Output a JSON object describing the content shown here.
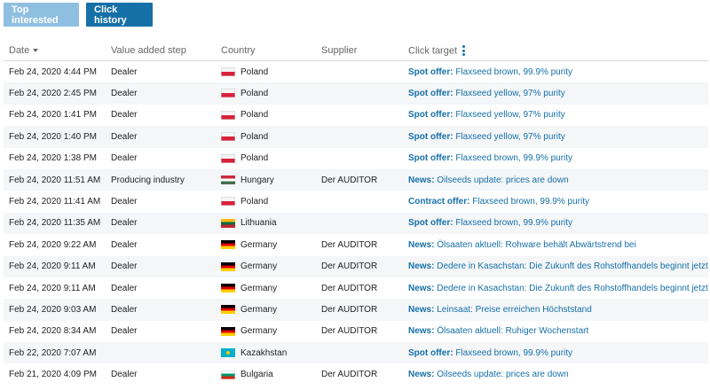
{
  "tabs": {
    "top_interested": "Top interested",
    "click_history": "Click history"
  },
  "columns": {
    "date": "Date",
    "value_added_step": "Value added step",
    "country": "Country",
    "supplier": "Supplier",
    "click_target": "Click target"
  },
  "colors": {
    "accent": "#1670a8",
    "tab_inactive": "#8fbfe0",
    "row_stripe": "#f4f6f8"
  },
  "rows": [
    {
      "date": "Feb 24, 2020 4:44 PM",
      "step": "Dealer",
      "flag": "poland",
      "country": "Poland",
      "supplier": "",
      "target_type": "Spot offer:",
      "target_text": "Flaxseed brown, 99.9% purity"
    },
    {
      "date": "Feb 24, 2020 2:45 PM",
      "step": "Dealer",
      "flag": "poland",
      "country": "Poland",
      "supplier": "",
      "target_type": "Spot offer:",
      "target_text": "Flaxseed yellow, 97% purity"
    },
    {
      "date": "Feb 24, 2020 1:41 PM",
      "step": "Dealer",
      "flag": "poland",
      "country": "Poland",
      "supplier": "",
      "target_type": "Spot offer:",
      "target_text": "Flaxseed yellow, 97% purity"
    },
    {
      "date": "Feb 24, 2020 1:40 PM",
      "step": "Dealer",
      "flag": "poland",
      "country": "Poland",
      "supplier": "",
      "target_type": "Spot offer:",
      "target_text": "Flaxseed yellow, 97% purity"
    },
    {
      "date": "Feb 24, 2020 1:38 PM",
      "step": "Dealer",
      "flag": "poland",
      "country": "Poland",
      "supplier": "",
      "target_type": "Spot offer:",
      "target_text": "Flaxseed brown, 99.9% purity"
    },
    {
      "date": "Feb 24, 2020 11:51 AM",
      "step": "Producing industry",
      "flag": "hungary",
      "country": "Hungary",
      "supplier": "Der AUDITOR",
      "target_type": "News:",
      "target_text": "Oilseeds update: prices are down"
    },
    {
      "date": "Feb 24, 2020 11:41 AM",
      "step": "Dealer",
      "flag": "poland",
      "country": "Poland",
      "supplier": "",
      "target_type": "Contract offer:",
      "target_text": "Flaxseed brown, 99.9% purity"
    },
    {
      "date": "Feb 24, 2020 11:35 AM",
      "step": "Dealer",
      "flag": "lithuania",
      "country": "Lithuania",
      "supplier": "",
      "target_type": "Spot offer:",
      "target_text": "Flaxseed brown, 99.9% purity"
    },
    {
      "date": "Feb 24, 2020 9:22 AM",
      "step": "Dealer",
      "flag": "germany",
      "country": "Germany",
      "supplier": "Der AUDITOR",
      "target_type": "News:",
      "target_text": "Ölsaaten aktuell: Rohware behält Abwärtstrend bei"
    },
    {
      "date": "Feb 24, 2020 9:11 AM",
      "step": "Dealer",
      "flag": "germany",
      "country": "Germany",
      "supplier": "Der AUDITOR",
      "target_type": "News:",
      "target_text": "Dedere in Kasachstan: Die Zukunft des Rohstoffhandels beginnt jetzt"
    },
    {
      "date": "Feb 24, 2020 9:11 AM",
      "step": "Dealer",
      "flag": "germany",
      "country": "Germany",
      "supplier": "Der AUDITOR",
      "target_type": "News:",
      "target_text": "Dedere in Kasachstan: Die Zukunft des Rohstoffhandels beginnt jetzt"
    },
    {
      "date": "Feb 24, 2020 9:03 AM",
      "step": "Dealer",
      "flag": "germany",
      "country": "Germany",
      "supplier": "Der AUDITOR",
      "target_type": "News:",
      "target_text": "Leinsaat: Preise erreichen Höchststand"
    },
    {
      "date": "Feb 24, 2020 8:34 AM",
      "step": "Dealer",
      "flag": "germany",
      "country": "Germany",
      "supplier": "Der AUDITOR",
      "target_type": "News:",
      "target_text": "Ölsaaten aktuell: Ruhiger Wochenstart"
    },
    {
      "date": "Feb 22, 2020 7:07 AM",
      "step": "",
      "flag": "kazakhstan",
      "country": "Kazakhstan",
      "supplier": "",
      "target_type": "Spot offer:",
      "target_text": "Flaxseed brown, 99.9% purity"
    },
    {
      "date": "Feb 21, 2020 4:09 PM",
      "step": "Dealer",
      "flag": "bulgaria",
      "country": "Bulgaria",
      "supplier": "Der AUDITOR",
      "target_type": "News:",
      "target_text": "Oilseeds update: prices are down"
    }
  ]
}
